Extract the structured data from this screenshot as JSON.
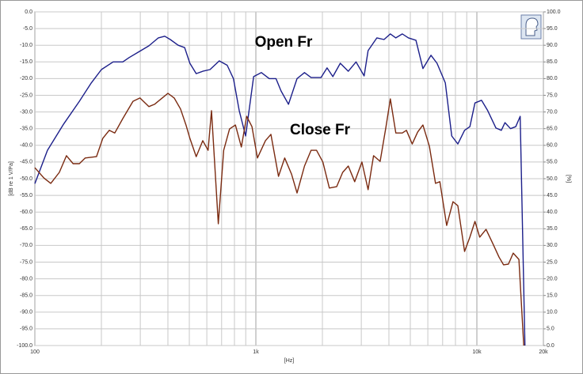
{
  "chart_data": {
    "type": "line",
    "annotations": [
      "Open Fr",
      "Close Fr"
    ],
    "xlabel": "[Hz]",
    "ylabel": "[dB re 1 V/Pa]",
    "y2label": "[%]",
    "xscale": "log",
    "grid": true,
    "xlim": [
      100,
      20000
    ],
    "xticks": [
      100,
      {
        "value": 1000,
        "label": "1k"
      },
      {
        "value": 10000,
        "label": "10k"
      },
      {
        "value": 20000,
        "label": "20k"
      }
    ],
    "xminorticks": [
      200,
      300,
      400,
      500,
      600,
      700,
      800,
      900,
      2000,
      3000,
      4000,
      5000,
      6000,
      7000,
      8000,
      9000
    ],
    "ylim": [
      -100,
      0
    ],
    "yticks": [
      {
        "value": -100,
        "label": "-100.0"
      },
      {
        "value": -95,
        "label": "-95.0"
      },
      {
        "value": -90,
        "label": "-90.0"
      },
      {
        "value": -85,
        "label": "-85.0"
      },
      {
        "value": -80,
        "label": "-80.0"
      },
      {
        "value": -75,
        "label": "-75.0"
      },
      {
        "value": -70,
        "label": "-70.0"
      },
      {
        "value": -65,
        "label": "-65.0"
      },
      {
        "value": -60,
        "label": "-60.0"
      },
      {
        "value": -55,
        "label": "-55.0"
      },
      {
        "value": -50,
        "label": "-50.0"
      },
      {
        "value": -45,
        "label": "-45.0"
      },
      {
        "value": -40,
        "label": "-40.0"
      },
      {
        "value": -35,
        "label": "-35.0"
      },
      {
        "value": -30,
        "label": "-30.0"
      },
      {
        "value": -25,
        "label": "-25.0"
      },
      {
        "value": -20,
        "label": "-20.0"
      },
      {
        "value": -15,
        "label": "-15.0"
      },
      {
        "value": -10,
        "label": "-10.0"
      },
      {
        "value": -5,
        "label": "-5.0"
      },
      {
        "value": 0,
        "label": "0.0"
      }
    ],
    "y2lim": [
      0,
      100
    ],
    "y2ticks": [
      {
        "value": 0,
        "label": "0.0"
      },
      {
        "value": 5,
        "label": "5.0"
      },
      {
        "value": 10,
        "label": "10.0"
      },
      {
        "value": 15,
        "label": "15.0"
      },
      {
        "value": 20,
        "label": "20.0"
      },
      {
        "value": 25,
        "label": "25.0"
      },
      {
        "value": 30,
        "label": "30.0"
      },
      {
        "value": 35,
        "label": "35.0"
      },
      {
        "value": 40,
        "label": "40.0"
      },
      {
        "value": 45,
        "label": "45.0"
      },
      {
        "value": 50,
        "label": "50.0"
      },
      {
        "value": 55,
        "label": "55.0"
      },
      {
        "value": 60,
        "label": "60.0"
      },
      {
        "value": 65,
        "label": "65.0"
      },
      {
        "value": 70,
        "label": "70.0"
      },
      {
        "value": 75,
        "label": "75.0"
      },
      {
        "value": 80,
        "label": "80.0"
      },
      {
        "value": 85,
        "label": "85.0"
      },
      {
        "value": 90,
        "label": "90.0"
      },
      {
        "value": 95,
        "label": "95.0"
      },
      {
        "value": 100,
        "label": "100.0"
      }
    ],
    "series": [
      {
        "color": "#1c1f8a",
        "x": [
          100,
          114,
          135,
          159,
          180,
          200,
          226,
          250,
          267,
          295,
          328,
          362,
          387,
          410,
          445,
          476,
          503,
          537,
          575,
          620,
          683,
          742,
          792,
          841,
          899,
          977,
          1059,
          1150,
          1233,
          1300,
          1405,
          1536,
          1660,
          1777,
          1970,
          2100,
          2230,
          2410,
          2620,
          2840,
          3090,
          3220,
          3530,
          3800,
          4060,
          4300,
          4600,
          4900,
          5300,
          5700,
          6200,
          6600,
          7200,
          7700,
          8200,
          8800,
          9300,
          9800,
          10500,
          11200,
          12200,
          12900,
          13400,
          14200,
          15000,
          15700,
          16500
        ],
        "values": [
          -51.5,
          -41.5,
          -33.6,
          -26.8,
          -21.3,
          -17.3,
          -15,
          -15,
          -13.7,
          -12,
          -10.2,
          -7.8,
          -7.3,
          -8.3,
          -10,
          -10.7,
          -15.4,
          -18.5,
          -17.8,
          -17.3,
          -14.7,
          -16,
          -20,
          -29.6,
          -37.2,
          -19.4,
          -18.2,
          -20,
          -20,
          -23.7,
          -27.7,
          -20,
          -18.2,
          -19.7,
          -19.7,
          -16.8,
          -19.4,
          -15.4,
          -17.8,
          -15,
          -19.2,
          -11.6,
          -7.8,
          -8.3,
          -6.6,
          -7.8,
          -6.6,
          -7.8,
          -8.5,
          -17,
          -13,
          -15.4,
          -21.3,
          -37.2,
          -39.6,
          -35.5,
          -34.4,
          -27.3,
          -26.5,
          -29.6,
          -34.8,
          -35.5,
          -33.2,
          -35,
          -34.4,
          -31.3,
          -100
        ]
      },
      {
        "color": "#7a2a10",
        "x": [
          100,
          110,
          118,
          129,
          139,
          149,
          159,
          169,
          190,
          203,
          217,
          230,
          250,
          278,
          299,
          328,
          348,
          377,
          400,
          427,
          456,
          483,
          503,
          537,
          575,
          608,
          630,
          676,
          715,
          760,
          808,
          860,
          909,
          960,
          1017,
          1105,
          1170,
          1266,
          1350,
          1450,
          1536,
          1660,
          1777,
          1882,
          2010,
          2150,
          2320,
          2470,
          2620,
          2800,
          3020,
          3220,
          3410,
          3650,
          3880,
          4060,
          4300,
          4600,
          4800,
          5100,
          5400,
          5700,
          6100,
          6500,
          6800,
          7300,
          7800,
          8200,
          8800,
          9300,
          9800,
          10300,
          11000,
          11800,
          12600,
          13200,
          13900,
          14600,
          15500,
          16300
        ],
        "values": [
          -46.7,
          -49.8,
          -51.4,
          -48.1,
          -43.1,
          -45.5,
          -45.5,
          -43.8,
          -43.4,
          -37.9,
          -35.5,
          -36.3,
          -32,
          -26.8,
          -25.8,
          -28.4,
          -27.7,
          -25.8,
          -24.4,
          -25.8,
          -29.1,
          -33.9,
          -37.9,
          -43.4,
          -38.6,
          -41.5,
          -29.6,
          -63.5,
          -41.5,
          -35.1,
          -33.9,
          -40.5,
          -31.3,
          -34.4,
          -43.8,
          -38.6,
          -36.7,
          -49.3,
          -43.8,
          -48.6,
          -54.3,
          -46.2,
          -41.5,
          -41.5,
          -45,
          -52.8,
          -52.4,
          -48.1,
          -46.2,
          -50.9,
          -45,
          -53.3,
          -43.1,
          -44.8,
          -34.4,
          -26.1,
          -36.3,
          -36.3,
          -35.5,
          -39.6,
          -36,
          -33.9,
          -40.3,
          -51.4,
          -50.9,
          -64,
          -56.9,
          -58.1,
          -71.8,
          -67.5,
          -62.8,
          -67.5,
          -65.2,
          -69.4,
          -73.5,
          -75.8,
          -75.6,
          -72.3,
          -74.2,
          -100
        ]
      }
    ]
  }
}
